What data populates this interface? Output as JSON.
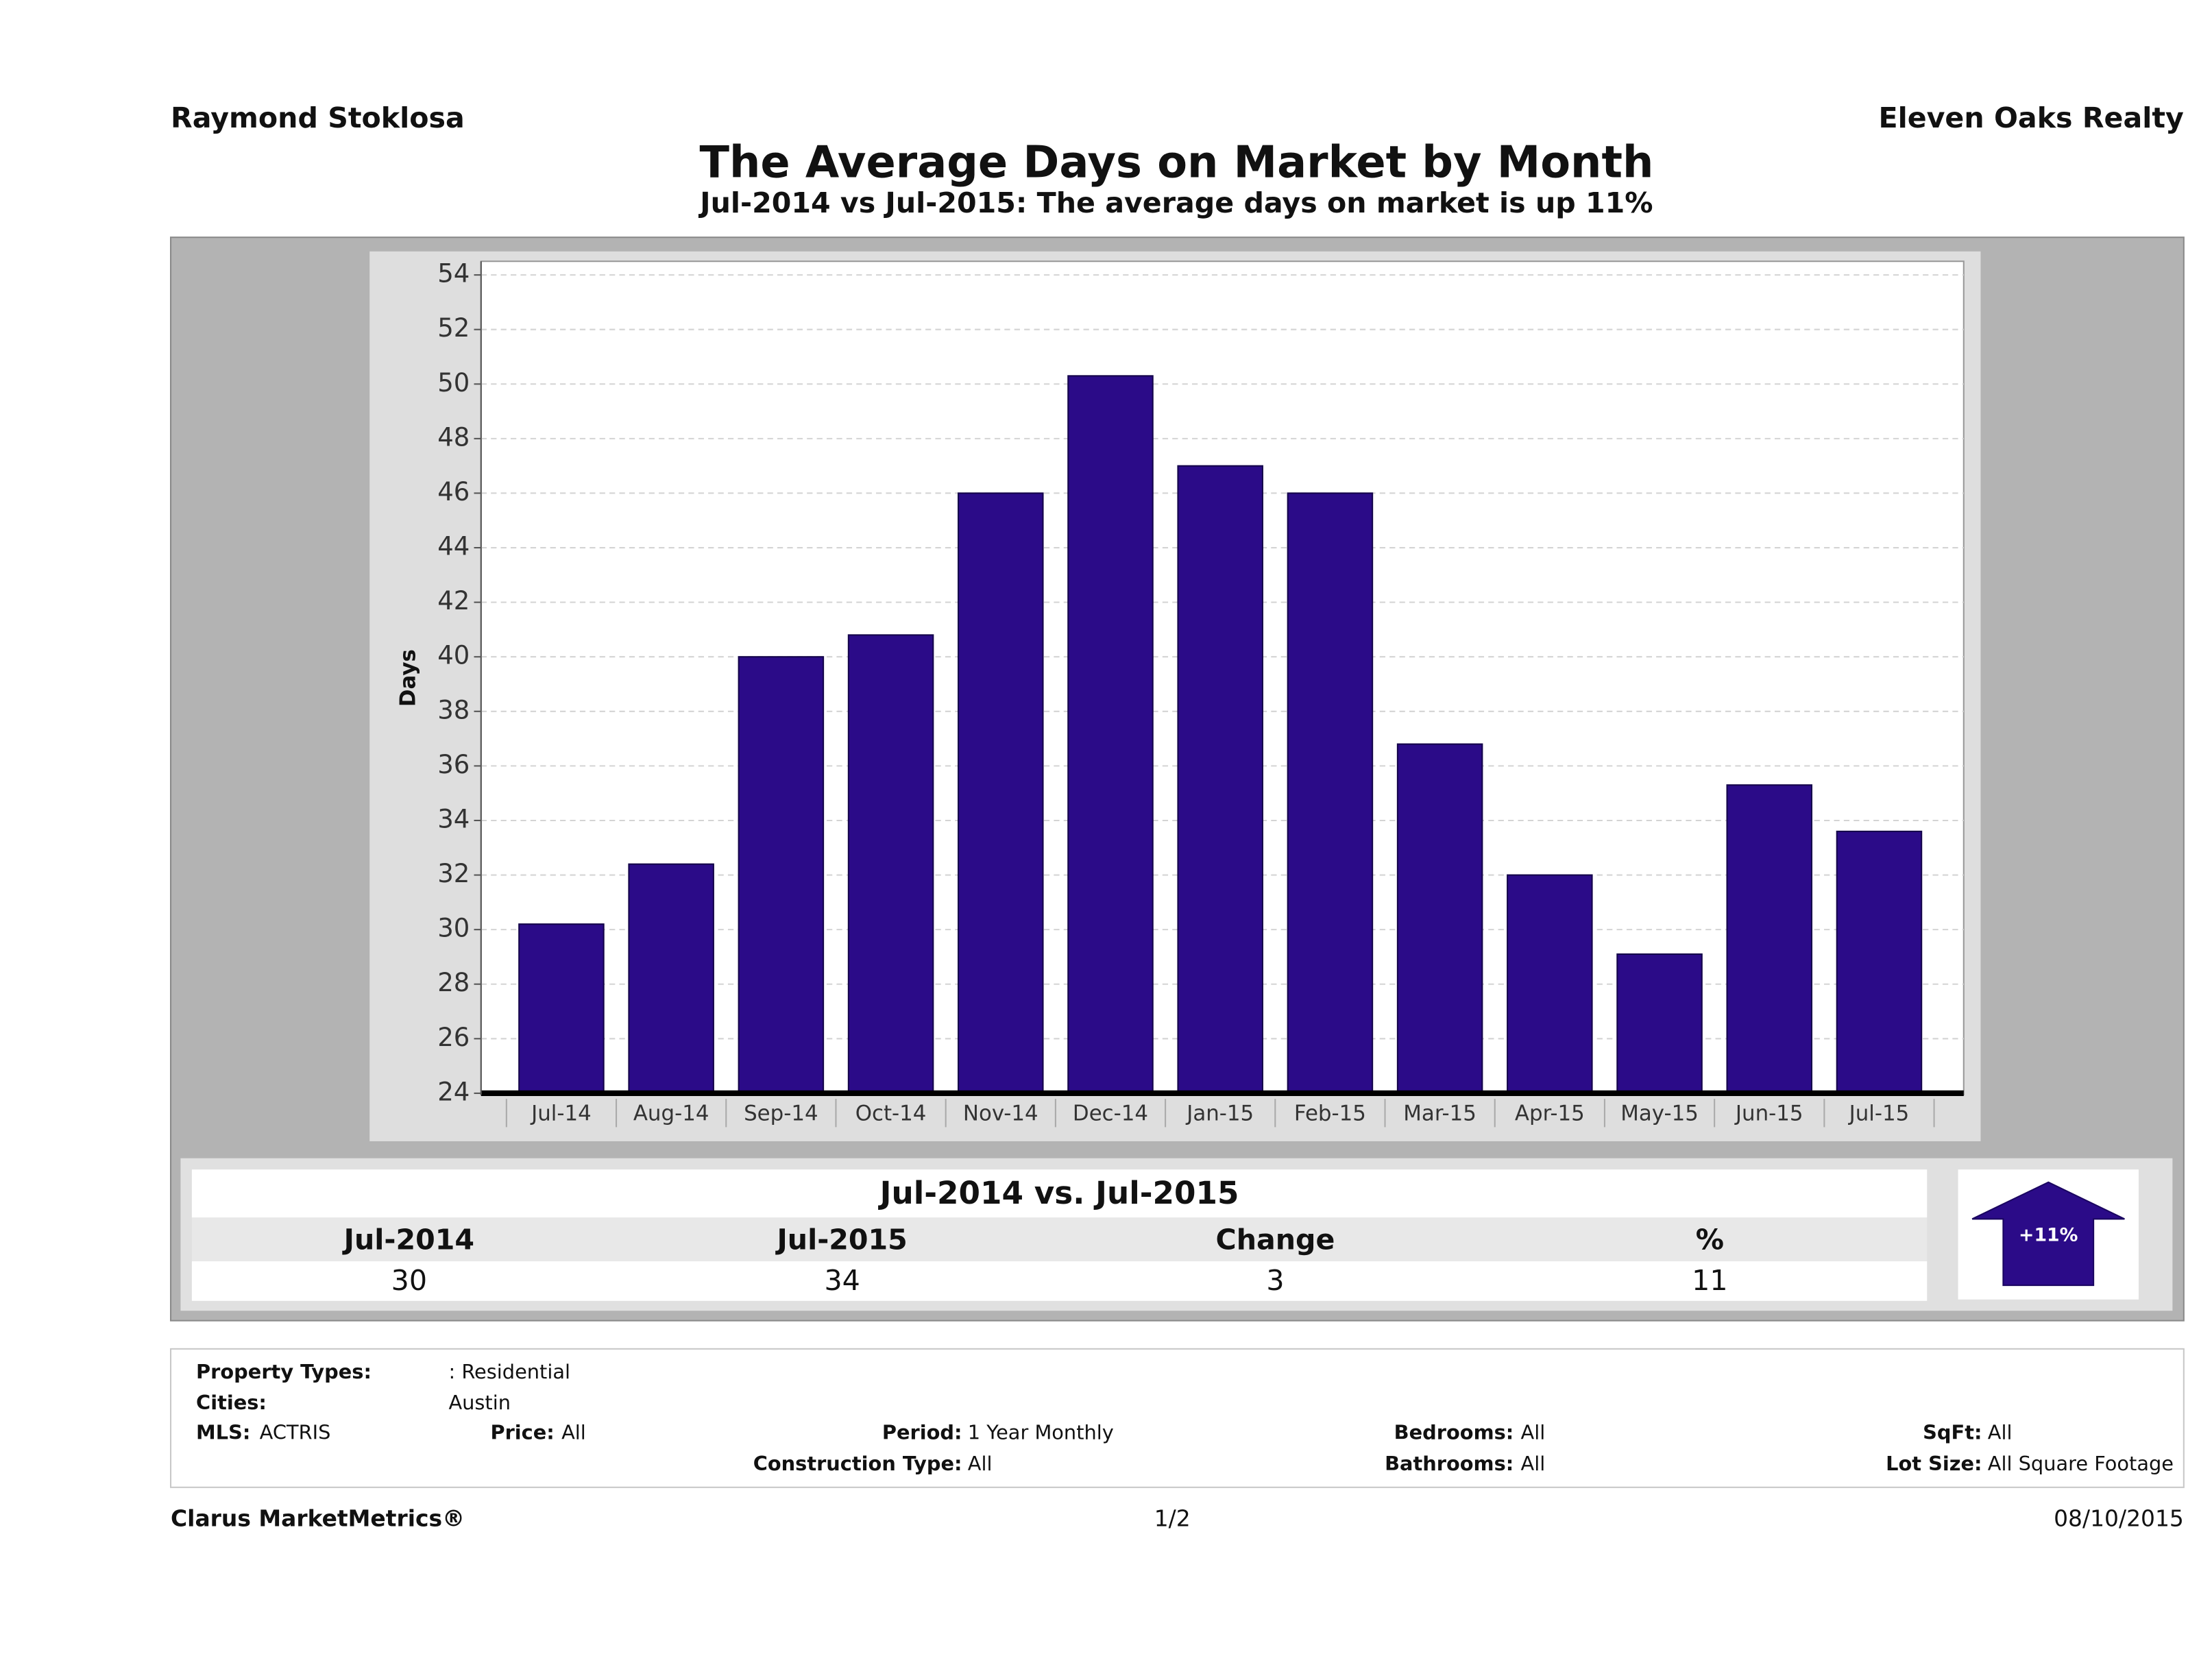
{
  "header": {
    "agent": "Raymond Stoklosa",
    "company": "Eleven Oaks Realty"
  },
  "chart_data": {
    "type": "bar",
    "title": "The Average Days on Market by Month",
    "subtitle": "Jul-2014 vs Jul-2015: The average days on market is up 11%",
    "y_label": "Days",
    "categories": [
      "Jul-14",
      "Aug-14",
      "Sep-14",
      "Oct-14",
      "Nov-14",
      "Dec-14",
      "Jan-15",
      "Feb-15",
      "Mar-15",
      "Apr-15",
      "May-15",
      "Jun-15",
      "Jul-15"
    ],
    "values": [
      30.2,
      32.4,
      40,
      40.8,
      46,
      50.3,
      47,
      46,
      36.8,
      32,
      29.1,
      35.3,
      33.6
    ],
    "color": "#2b0b88",
    "ylim": [
      24,
      54.5
    ],
    "yticks": [
      24,
      26,
      28,
      30,
      32,
      34,
      36,
      38,
      40,
      42,
      44,
      46,
      48,
      50,
      52,
      54
    ],
    "grid": true
  },
  "summary": {
    "title": "Jul-2014 vs. Jul-2015",
    "headers": [
      "Jul-2014",
      "Jul-2015",
      "Change",
      "%"
    ],
    "values": [
      30,
      34,
      3,
      11
    ],
    "arrow_label": "+11%"
  },
  "filters": [
    {
      "label": "Property Types:",
      "value": ": Residential"
    },
    {
      "label": "Cities:",
      "value": "Austin"
    },
    {
      "label": "MLS:",
      "value": "ACTRIS"
    },
    {
      "label": "Price:",
      "value": "All"
    },
    {
      "label": "Period:",
      "value": "1 Year Monthly"
    },
    {
      "label": "Construction Type:",
      "value": "All"
    },
    {
      "label": "Bedrooms:",
      "value": "All"
    },
    {
      "label": "Bathrooms:",
      "value": "All"
    },
    {
      "label": "SqFt:",
      "value": "All"
    },
    {
      "label": "Lot Size:",
      "value": "All Square Footage"
    }
  ],
  "footer": {
    "brand": "Clarus MarketMetrics®",
    "page": "1/2",
    "date": "08/10/2015"
  }
}
